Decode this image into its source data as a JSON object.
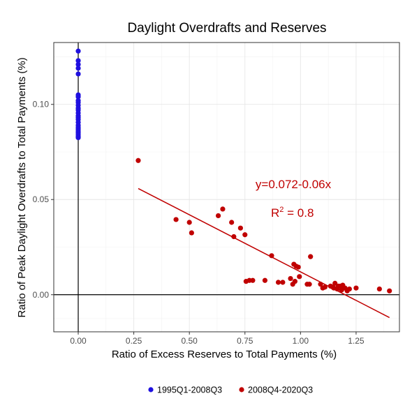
{
  "chart_data": {
    "type": "scatter",
    "title": "Daylight Overdrafts and Reserves",
    "xlabel": "Ratio of Excess Reserves to Total Payments (%)",
    "ylabel": "Ratio of Peak Daylight Overdrafts to Total Payments (%)",
    "xlim": [
      -0.11,
      1.445
    ],
    "ylim": [
      -0.0195,
      0.1325
    ],
    "x_ticks": [
      0.0,
      0.25,
      0.5,
      0.75,
      1.0,
      1.25
    ],
    "x_tick_labels": [
      "0.00",
      "0.25",
      "0.50",
      "0.75",
      "1.00",
      "1.25"
    ],
    "y_ticks": [
      0.0,
      0.05,
      0.1
    ],
    "y_tick_labels": [
      "0.00",
      "0.05",
      "0.10"
    ],
    "grid": true,
    "reference_lines": {
      "x": 0,
      "y": 0
    },
    "legend_position": "bottom",
    "series": [
      {
        "name": "1995Q1-2008Q3",
        "color": "#1f10e0",
        "points": [
          [
            0,
            0.128
          ],
          [
            0,
            0.123
          ],
          [
            0,
            0.121
          ],
          [
            0,
            0.119
          ],
          [
            0,
            0.116
          ],
          [
            0,
            0.105
          ],
          [
            0,
            0.104
          ],
          [
            0,
            0.102
          ],
          [
            0,
            0.101
          ],
          [
            0,
            0.0995
          ],
          [
            0,
            0.098
          ],
          [
            0,
            0.097
          ],
          [
            0,
            0.0955
          ],
          [
            0,
            0.094
          ],
          [
            0,
            0.093
          ],
          [
            0,
            0.092
          ],
          [
            0,
            0.0905
          ],
          [
            0,
            0.089
          ],
          [
            0,
            0.088
          ],
          [
            0,
            0.087
          ],
          [
            0,
            0.086
          ],
          [
            0,
            0.085
          ],
          [
            0,
            0.084
          ],
          [
            0,
            0.083
          ],
          [
            0,
            0.0825
          ]
        ]
      },
      {
        "name": "2008Q4-2020Q3",
        "color": "#c00000",
        "points": [
          [
            0.27,
            0.0705
          ],
          [
            0.44,
            0.0395
          ],
          [
            0.5,
            0.038
          ],
          [
            0.51,
            0.0325
          ],
          [
            0.63,
            0.0415
          ],
          [
            0.65,
            0.045
          ],
          [
            0.69,
            0.038
          ],
          [
            0.7,
            0.0305
          ],
          [
            0.73,
            0.035
          ],
          [
            0.75,
            0.0315
          ],
          [
            0.755,
            0.007
          ],
          [
            0.77,
            0.0075
          ],
          [
            0.785,
            0.0075
          ],
          [
            0.84,
            0.0075
          ],
          [
            0.87,
            0.0205
          ],
          [
            0.9,
            0.0065
          ],
          [
            0.92,
            0.0065
          ],
          [
            0.955,
            0.0085
          ],
          [
            0.965,
            0.0055
          ],
          [
            0.97,
            0.016
          ],
          [
            0.975,
            0.007
          ],
          [
            0.98,
            0.015
          ],
          [
            0.99,
            0.0145
          ],
          [
            0.995,
            0.0095
          ],
          [
            1.03,
            0.0055
          ],
          [
            1.04,
            0.0055
          ],
          [
            1.045,
            0.02
          ],
          [
            1.09,
            0.0055
          ],
          [
            1.1,
            0.0035
          ],
          [
            1.11,
            0.004
          ],
          [
            1.135,
            0.0045
          ],
          [
            1.145,
            0.004
          ],
          [
            1.15,
            0.0035
          ],
          [
            1.155,
            0.006
          ],
          [
            1.165,
            0.003
          ],
          [
            1.17,
            0.0045
          ],
          [
            1.18,
            0.0045
          ],
          [
            1.185,
            0.0025
          ],
          [
            1.19,
            0.005
          ],
          [
            1.2,
            0.0035
          ],
          [
            1.21,
            0.002
          ],
          [
            1.22,
            0.003
          ],
          [
            1.25,
            0.0035
          ],
          [
            1.355,
            0.003
          ],
          [
            1.4,
            0.002
          ]
        ],
        "fit_line": {
          "x_start": 0.27,
          "x_end": 1.4,
          "intercept": 0.072,
          "slope": -0.06
        }
      }
    ],
    "annotations": {
      "equation": "y=0.072-0.06x",
      "r2_prefix": "R",
      "r2_sup": "2",
      "r2_value": " = 0.8"
    }
  }
}
